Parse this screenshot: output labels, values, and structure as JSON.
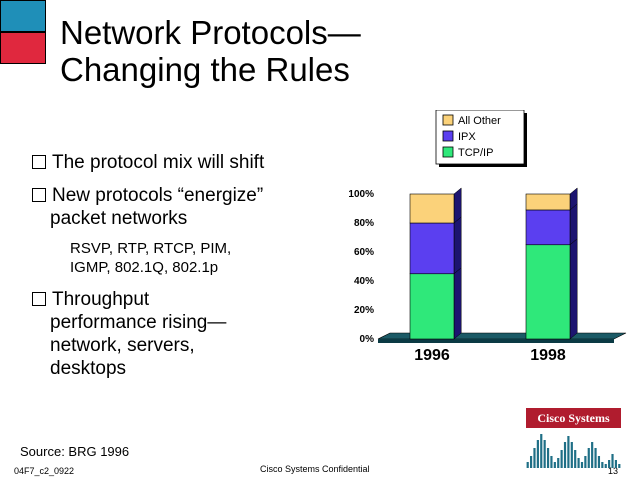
{
  "slide": {
    "title_line1": "Network Protocols—",
    "title_line2": "Changing the Rules",
    "bullets": [
      {
        "lines": [
          "The protocol mix will shift"
        ]
      },
      {
        "lines": [
          "New protocols “energize”",
          "packet networks"
        ]
      },
      {
        "lines": [
          "Throughput",
          "performance rising—",
          "network, servers,",
          "desktops"
        ]
      }
    ],
    "sub_bullet_lines": [
      "RSVP, RTP, RTCP, PIM,",
      "IGMP, 802.1Q, 802.1p"
    ],
    "source": "Source: BRG 1996"
  },
  "footer": {
    "left": "04F7_c2_0922",
    "center": "Cisco Systems Confidential",
    "right": "13",
    "logo_text": "Cisco Systems"
  },
  "colors": {
    "square_top": "#1f8fb8",
    "square_bottom": "#e0283e",
    "all_other": "#fbd27a",
    "ipx": "#5b3ff0",
    "tcpip": "#2fe87a",
    "logo_red": "#b01c2e"
  },
  "chart_data": {
    "type": "bar",
    "stacked": true,
    "categories": [
      "1996",
      "1998"
    ],
    "series": [
      {
        "name": "TCP/IP",
        "values": [
          45,
          65
        ]
      },
      {
        "name": "IPX",
        "values": [
          35,
          24
        ]
      },
      {
        "name": "All Other",
        "values": [
          20,
          11
        ]
      }
    ],
    "yticks": [
      "0%",
      "20%",
      "40%",
      "60%",
      "80%",
      "100%"
    ],
    "ylim": [
      0,
      100
    ],
    "legend_position": "top-right"
  }
}
